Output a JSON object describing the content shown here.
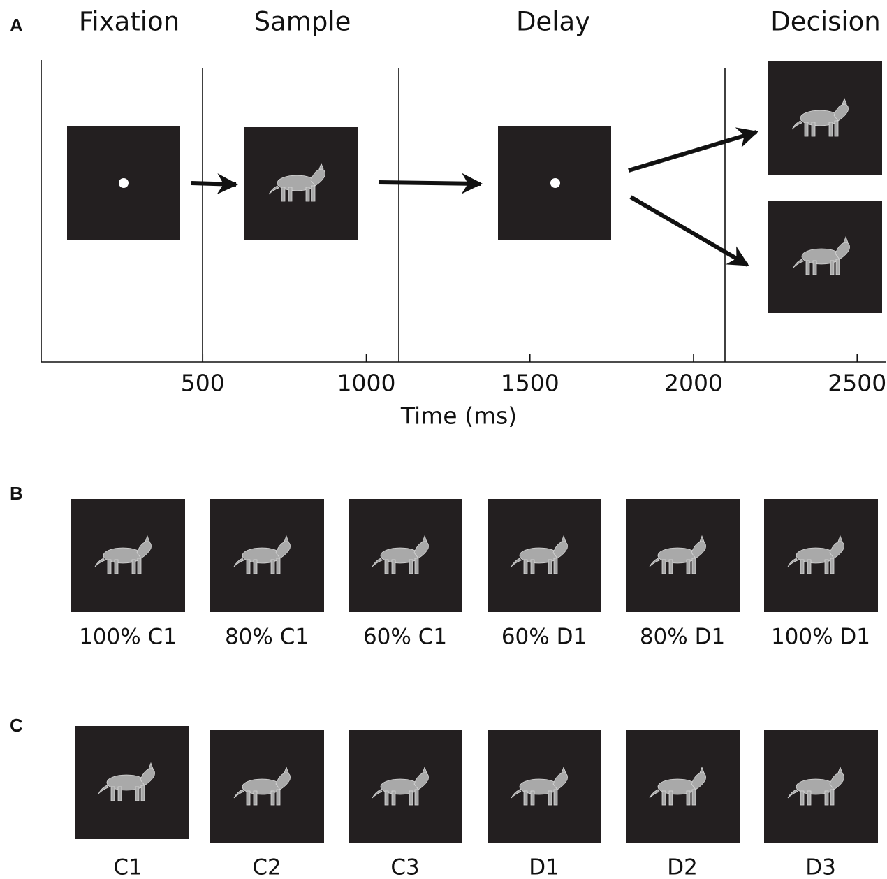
{
  "panels": {
    "a": {
      "label": "A",
      "phases": [
        "Fixation",
        "Sample",
        "Delay",
        "Decision"
      ],
      "axis": {
        "label": "Time (ms)",
        "ticks": [
          500,
          1000,
          1500,
          2000,
          2500
        ]
      }
    },
    "b": {
      "label": "B",
      "images": [
        "100% C1",
        "80% C1",
        "60% C1",
        "60% D1",
        "80% D1",
        "100% D1"
      ]
    },
    "c": {
      "label": "C",
      "images": [
        "C1",
        "C2",
        "C3",
        "D1",
        "D2",
        "D3"
      ]
    }
  }
}
